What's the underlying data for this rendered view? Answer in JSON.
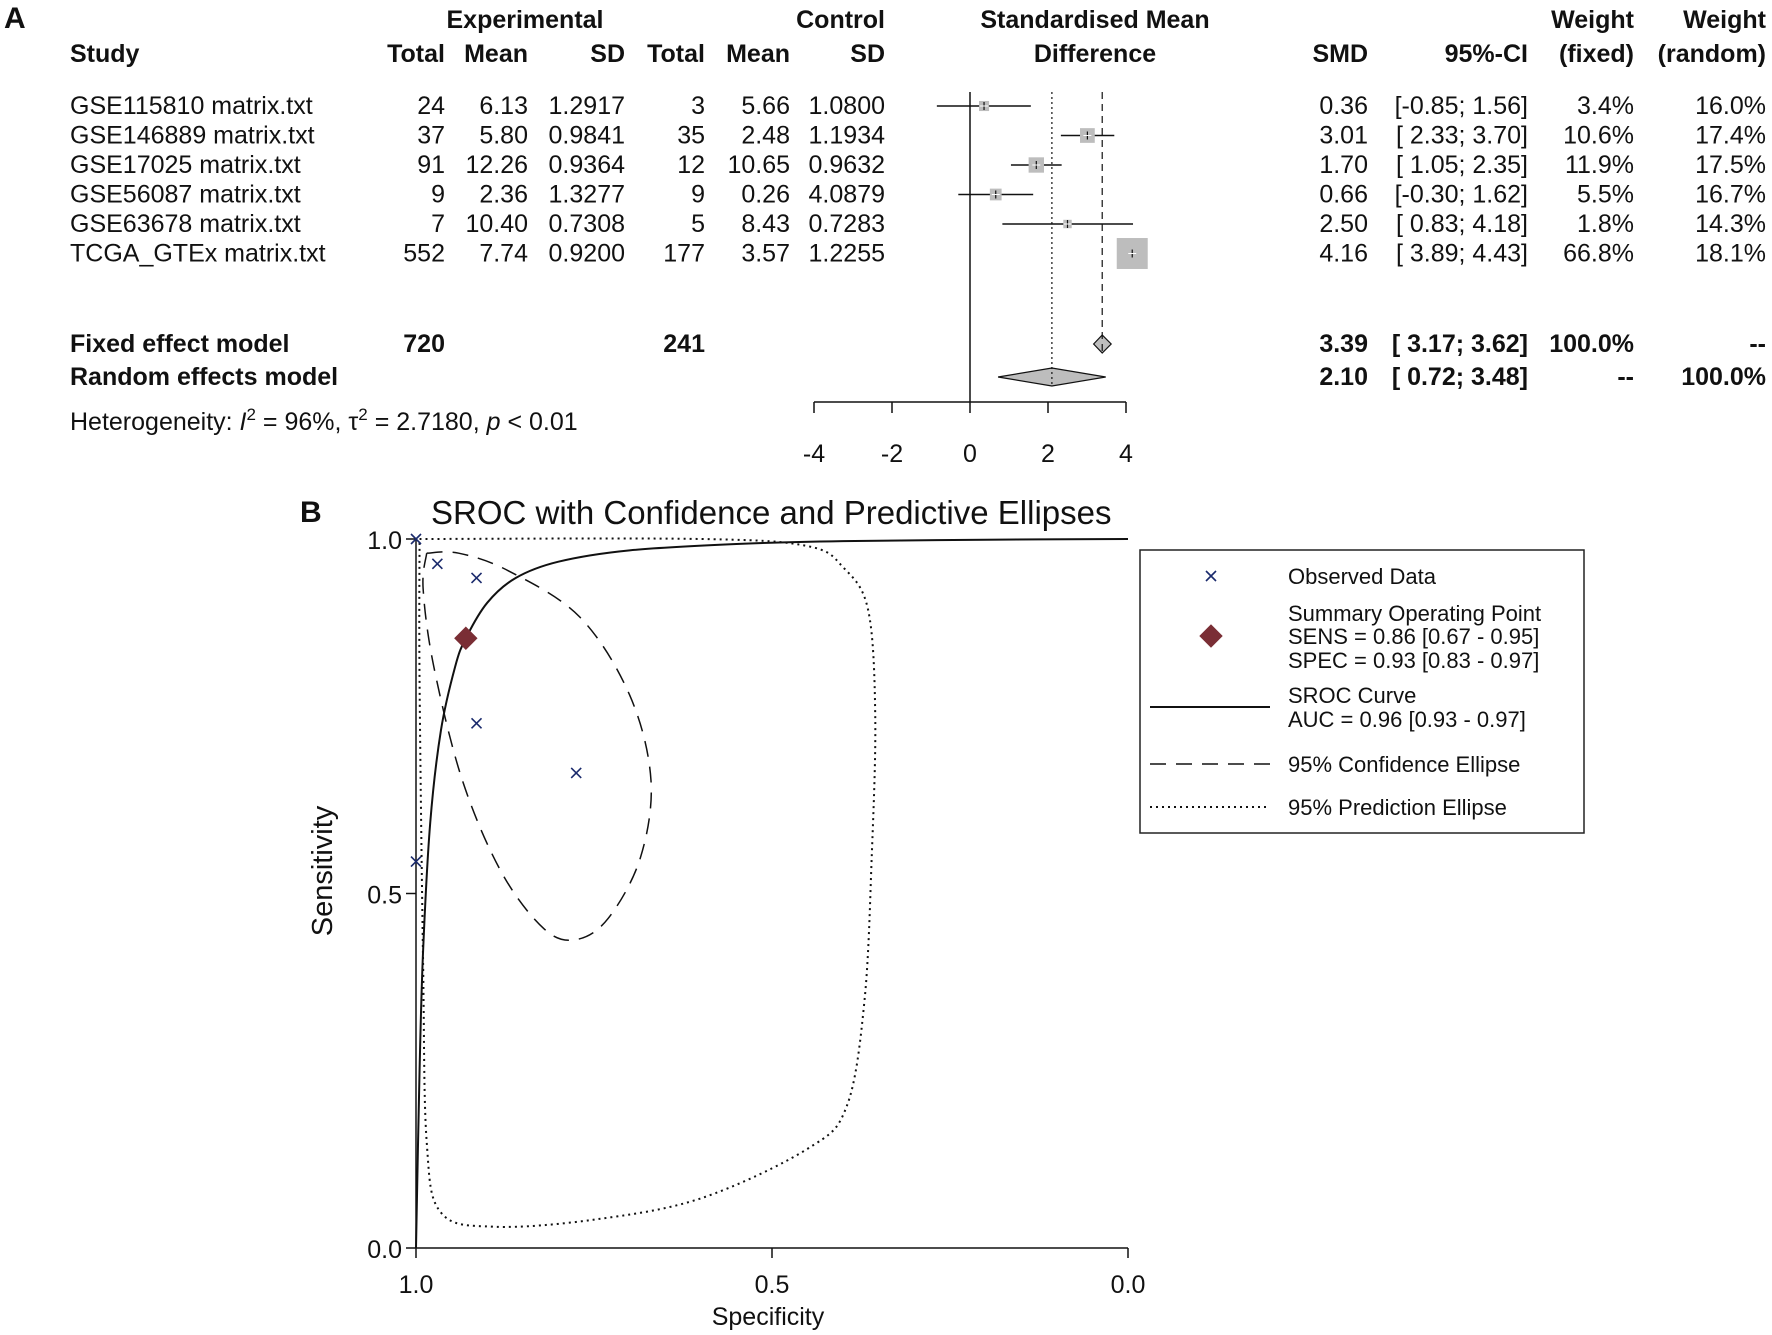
{
  "chart_data": [
    {
      "type": "forest",
      "panel_label": "A",
      "headers": {
        "study": "Study",
        "experimental_group": "Experimental",
        "control_group": "Control",
        "total": "Total",
        "mean": "Mean",
        "sd": "SD",
        "smd_title_line1": "Standardised Mean",
        "smd_title_line2": "Difference",
        "smd": "SMD",
        "ci": "95%-CI",
        "weight": "Weight",
        "fixed": "(fixed)",
        "random": "(random)"
      },
      "studies": [
        {
          "name": "GSE115810 matrix.txt",
          "e_total": "24",
          "e_mean": "6.13",
          "e_sd": "1.2917",
          "c_total": "3",
          "c_mean": "5.66",
          "c_sd": "1.0800",
          "smd_text": "0.36",
          "ci_text": "[-0.85; 1.56]",
          "w_fixed": "3.4%",
          "w_random": "16.0%",
          "smd": 0.36,
          "lo": -0.85,
          "hi": 1.56,
          "weight_fixed_pct": 3.4
        },
        {
          "name": "GSE146889 matrix.txt",
          "e_total": "37",
          "e_mean": "5.80",
          "e_sd": "0.9841",
          "c_total": "35",
          "c_mean": "2.48",
          "c_sd": "1.1934",
          "smd_text": "3.01",
          "ci_text": "[ 2.33; 3.70]",
          "w_fixed": "10.6%",
          "w_random": "17.4%",
          "smd": 3.01,
          "lo": 2.33,
          "hi": 3.7,
          "weight_fixed_pct": 10.6
        },
        {
          "name": "GSE17025 matrix.txt",
          "e_total": "91",
          "e_mean": "12.26",
          "e_sd": "0.9364",
          "c_total": "12",
          "c_mean": "10.65",
          "c_sd": "0.9632",
          "smd_text": "1.70",
          "ci_text": "[ 1.05; 2.35]",
          "w_fixed": "11.9%",
          "w_random": "17.5%",
          "smd": 1.7,
          "lo": 1.05,
          "hi": 2.35,
          "weight_fixed_pct": 11.9
        },
        {
          "name": "GSE56087 matrix.txt",
          "e_total": "9",
          "e_mean": "2.36",
          "e_sd": "1.3277",
          "c_total": "9",
          "c_mean": "0.26",
          "c_sd": "4.0879",
          "smd_text": "0.66",
          "ci_text": "[-0.30; 1.62]",
          "w_fixed": "5.5%",
          "w_random": "16.7%",
          "smd": 0.66,
          "lo": -0.3,
          "hi": 1.62,
          "weight_fixed_pct": 5.5
        },
        {
          "name": "GSE63678 matrix.txt",
          "e_total": "7",
          "e_mean": "10.40",
          "e_sd": "0.7308",
          "c_total": "5",
          "c_mean": "8.43",
          "c_sd": "0.7283",
          "smd_text": "2.50",
          "ci_text": "[ 0.83; 4.18]",
          "w_fixed": "1.8%",
          "w_random": "14.3%",
          "smd": 2.5,
          "lo": 0.83,
          "hi": 4.18,
          "weight_fixed_pct": 1.8
        },
        {
          "name": "TCGA_GTEx matrix.txt",
          "e_total": "552",
          "e_mean": "7.74",
          "e_sd": "0.9200",
          "c_total": "177",
          "c_mean": "3.57",
          "c_sd": "1.2255",
          "smd_text": "4.16",
          "ci_text": "[ 3.89; 4.43]",
          "w_fixed": "66.8%",
          "w_random": "18.1%",
          "smd": 4.16,
          "lo": 3.89,
          "hi": 4.43,
          "weight_fixed_pct": 66.8
        }
      ],
      "summary": [
        {
          "name": "Fixed effect model",
          "e_total": "720",
          "c_total": "241",
          "smd_text": "3.39",
          "ci_text": "[ 3.17; 3.62]",
          "w_fixed": "100.0%",
          "w_random": "--",
          "smd": 3.39,
          "lo": 3.17,
          "hi": 3.62
        },
        {
          "name": "Random effects model",
          "e_total": "",
          "c_total": "",
          "smd_text": "2.10",
          "ci_text": "[ 0.72; 3.48]",
          "w_fixed": "--",
          "w_random": "100.0%",
          "smd": 2.1,
          "lo": 0.72,
          "hi": 3.48
        }
      ],
      "heterogeneity": {
        "prefix": "Heterogeneity: ",
        "i2_symbol": "I",
        "sup2": "2",
        "i2_value": " = 96%, ",
        "tau_symbol": "τ",
        "tau2_value": " = 2.7180, ",
        "p_symbol": "p",
        "p_value": " < 0.01"
      },
      "x_ticks": [
        "-4",
        "-2",
        "0",
        "2",
        "4"
      ],
      "xlim": [
        -4,
        4
      ],
      "null_line": 0,
      "colors": {
        "box": "#bdbdbd",
        "diamond": "#bdbdbd"
      }
    },
    {
      "type": "sroc",
      "panel_label": "B",
      "title": "SROC with Confidence and Predictive Ellipses",
      "xlabel": "Specificity",
      "ylabel": "Sensitivity",
      "x_ticks": [
        "1.0",
        "0.5",
        "0.0"
      ],
      "y_ticks": [
        "1.0",
        "0.5",
        "0.0"
      ],
      "xlim": [
        1.0,
        0.0
      ],
      "ylim": [
        0.0,
        1.0
      ],
      "observed": {
        "label": "Observed Data",
        "marker": "x",
        "color": "#1a2a6c",
        "points": [
          {
            "spec": 1.0,
            "sens": 1.0
          },
          {
            "spec": 0.97,
            "sens": 0.965
          },
          {
            "spec": 0.915,
            "sens": 0.945
          },
          {
            "spec": 0.915,
            "sens": 0.74
          },
          {
            "spec": 0.775,
            "sens": 0.67
          },
          {
            "spec": 1.0,
            "sens": 0.545
          }
        ]
      },
      "summary_point": {
        "label": "Summary Operating Point",
        "sens_label": "SENS = 0.86 [0.67 - 0.95]",
        "spec_label": "SPEC = 0.93 [0.83 - 0.97]",
        "sens": 0.86,
        "spec": 0.93,
        "color": "#7a2e35"
      },
      "sroc_curve": {
        "label": "SROC Curve",
        "auc_label": "AUC = 0.96 [0.93 - 0.97]",
        "points": [
          {
            "spec": 1.0,
            "sens": 0.0
          },
          {
            "spec": 0.995,
            "sens": 0.25
          },
          {
            "spec": 0.99,
            "sens": 0.42
          },
          {
            "spec": 0.98,
            "sens": 0.6
          },
          {
            "spec": 0.965,
            "sens": 0.73
          },
          {
            "spec": 0.945,
            "sens": 0.82
          },
          {
            "spec": 0.93,
            "sens": 0.86
          },
          {
            "spec": 0.9,
            "sens": 0.91
          },
          {
            "spec": 0.86,
            "sens": 0.945
          },
          {
            "spec": 0.8,
            "sens": 0.968
          },
          {
            "spec": 0.7,
            "sens": 0.984
          },
          {
            "spec": 0.55,
            "sens": 0.993
          },
          {
            "spec": 0.4,
            "sens": 0.997
          },
          {
            "spec": 0.2,
            "sens": 0.999
          },
          {
            "spec": 0.0,
            "sens": 1.0
          }
        ]
      },
      "confidence_ellipse": {
        "label": "95% Confidence Ellipse",
        "points": [
          {
            "spec": 0.985,
            "sens": 0.98
          },
          {
            "spec": 0.94,
            "sens": 0.98
          },
          {
            "spec": 0.87,
            "sens": 0.955
          },
          {
            "spec": 0.77,
            "sens": 0.89
          },
          {
            "spec": 0.7,
            "sens": 0.78
          },
          {
            "spec": 0.67,
            "sens": 0.66
          },
          {
            "spec": 0.685,
            "sens": 0.55
          },
          {
            "spec": 0.73,
            "sens": 0.465
          },
          {
            "spec": 0.775,
            "sens": 0.435
          },
          {
            "spec": 0.82,
            "sens": 0.45
          },
          {
            "spec": 0.88,
            "sens": 0.53
          },
          {
            "spec": 0.935,
            "sens": 0.66
          },
          {
            "spec": 0.975,
            "sens": 0.82
          },
          {
            "spec": 0.99,
            "sens": 0.93
          },
          {
            "spec": 0.985,
            "sens": 0.98
          }
        ]
      },
      "prediction_ellipse": {
        "label": "95% Prediction Ellipse",
        "points": [
          {
            "spec": 0.995,
            "sens": 1.0
          },
          {
            "spec": 0.6,
            "sens": 1.0
          },
          {
            "spec": 0.45,
            "sens": 0.99
          },
          {
            "spec": 0.4,
            "sens": 0.96
          },
          {
            "spec": 0.365,
            "sens": 0.9
          },
          {
            "spec": 0.355,
            "sens": 0.75
          },
          {
            "spec": 0.36,
            "sens": 0.55
          },
          {
            "spec": 0.37,
            "sens": 0.35
          },
          {
            "spec": 0.395,
            "sens": 0.2
          },
          {
            "spec": 0.45,
            "sens": 0.14
          },
          {
            "spec": 0.6,
            "sens": 0.07
          },
          {
            "spec": 0.75,
            "sens": 0.04
          },
          {
            "spec": 0.89,
            "sens": 0.03
          },
          {
            "spec": 0.965,
            "sens": 0.05
          },
          {
            "spec": 0.985,
            "sens": 0.15
          },
          {
            "spec": 0.99,
            "sens": 0.4
          },
          {
            "spec": 0.995,
            "sens": 0.8
          },
          {
            "spec": 0.995,
            "sens": 1.0
          }
        ]
      }
    }
  ]
}
